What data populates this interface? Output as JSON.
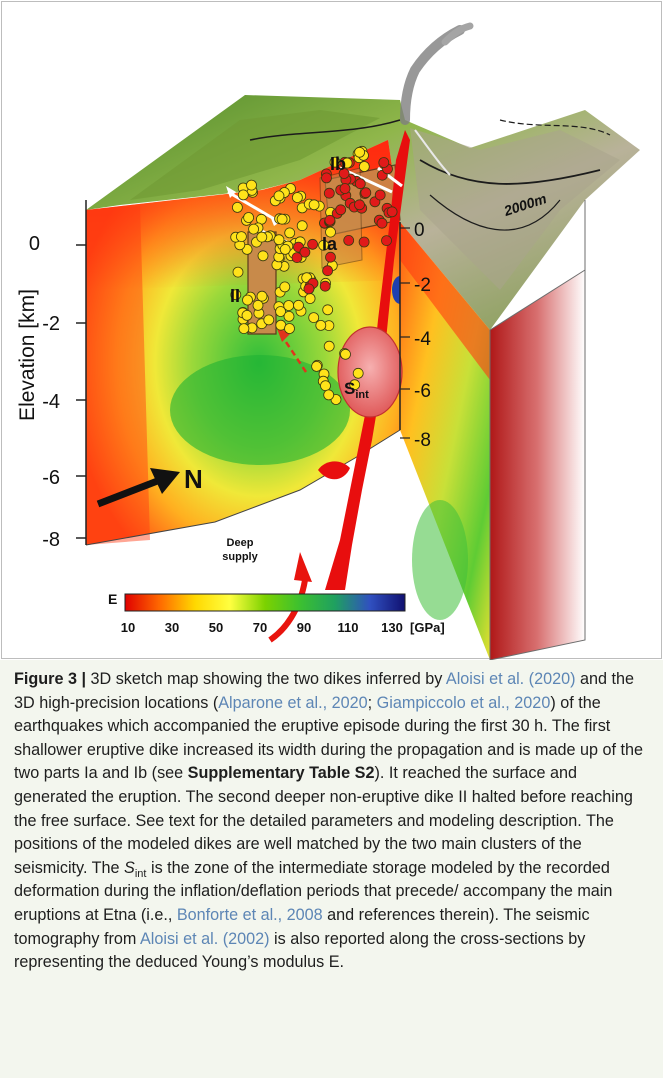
{
  "figure": {
    "elevation_axis": {
      "label": "Elevation [km]",
      "ticks": [
        "0",
        "-2",
        "-4",
        "-6",
        "-8"
      ]
    },
    "inner_axis_ticks": [
      "0",
      "-2",
      "-4",
      "-6",
      "-8"
    ],
    "north_label": "N",
    "contour_label": "2000m",
    "dike_labels": {
      "ia": "Ia",
      "ib": "Ib",
      "ii": "II"
    },
    "storage_label": {
      "main": "S",
      "sub": "int"
    },
    "deep_supply_label": [
      "Deep",
      "supply"
    ],
    "colorbar": {
      "label": "E",
      "ticks": [
        "10",
        "30",
        "50",
        "70",
        "90",
        "110",
        "130"
      ],
      "unit": "[GPa]",
      "colors": [
        "#e00000",
        "#ff6a00",
        "#ffd800",
        "#ffff40",
        "#7cd200",
        "#3cc030",
        "#1fa060",
        "#3050c0",
        "#101070"
      ]
    }
  },
  "caption": {
    "label": "Figure 3 |",
    "t1": " 3D sketch map showing the two dikes inferred by ",
    "r1": "Aloisi et al. (2020)",
    "t2": " and the 3D high-precision locations (",
    "r2": "Alparone et al., 2020",
    "t3": "; ",
    "r3": "Giampiccolo et al., 2020",
    "t4": ") of the earthquakes which accompanied the eruptive episode during the first 30 h. The first shallower eruptive dike increased its width during the propagation and is made up of the two parts Ia and Ib (see ",
    "b1": "Supplementary Table S2",
    "t5": "). It reached the surface and generated the eruption. The second deeper non-eruptive dike II halted before reaching the free surface. See text for the detailed parameters and modeling description. The positions of the modeled dikes are well matched by the two main clusters of the seismicity. The ",
    "s_main": "S",
    "s_sub": "int",
    "t6": " is the zone of the intermediate storage modeled by the recorded deformation during the inflation/deflation periods that precede/ accompany the main eruptions at Etna (i.e., ",
    "r4": "Bonforte et al., 2008",
    "t7": " and references therein). The seismic tomography from ",
    "r5": "Aloisi et al. (2002)",
    "t8": " is also reported along the cross-sections by representing the deduced Young’s modulus E."
  }
}
